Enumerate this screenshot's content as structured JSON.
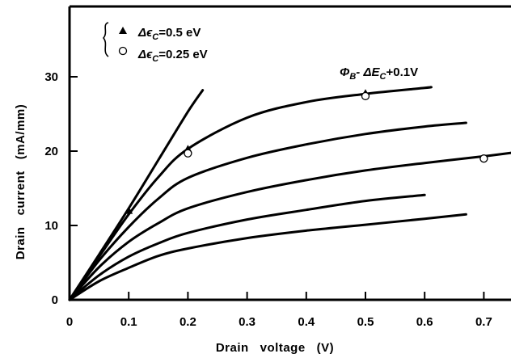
{
  "chart_data": {
    "type": "line",
    "xlabel": "Drain   voltage   (V)",
    "ylabel": "Drain   current   (mA/mm)",
    "xlim": [
      0,
      0.75
    ],
    "ylim": [
      0,
      35
    ],
    "x_ticks": [
      {
        "value": 0,
        "label": "0"
      },
      {
        "value": 0.1,
        "label": "0.1"
      },
      {
        "value": 0.2,
        "label": "0.2"
      },
      {
        "value": 0.3,
        "label": "0.3"
      },
      {
        "value": 0.4,
        "label": "0.4"
      },
      {
        "value": 0.5,
        "label": "0.5"
      },
      {
        "value": 0.6,
        "label": "0.6"
      },
      {
        "value": 0.7,
        "label": "0.7"
      }
    ],
    "y_ticks": [
      {
        "value": 0,
        "label": "0"
      },
      {
        "value": 10,
        "label": "10"
      },
      {
        "value": 20,
        "label": "20"
      },
      {
        "value": 30,
        "label": "30"
      }
    ],
    "grid": false,
    "legend_position": "top-left",
    "legend": [
      {
        "marker": "filled-triangle",
        "label": "Δϵ_C = 0.5 eV",
        "text": "Δϵ",
        "sub": "C",
        "tail": "=0.5 eV"
      },
      {
        "marker": "open-circle",
        "label": "Δϵ_C = 0.25 eV",
        "text": "Δϵ",
        "sub": "C",
        "tail": "=0.25 eV"
      }
    ],
    "annotation": {
      "label": "Φ_B - ΔE_C + 0.1V",
      "p1": "Φ",
      "s1": "B",
      "p2": "- ΔE",
      "s2": "C",
      "p3": "+0.1V",
      "x": 0.45,
      "y": 30.8
    },
    "series": [
      {
        "x": [
          0,
          0.05,
          0.1,
          0.15,
          0.2,
          0.225
        ],
        "y": [
          0,
          6.1,
          12.3,
          18.8,
          25.3,
          28.2
        ]
      },
      {
        "x": [
          0,
          0.05,
          0.1,
          0.15,
          0.2,
          0.3,
          0.4,
          0.5,
          0.6,
          0.61
        ],
        "y": [
          0,
          5.8,
          11.5,
          16.5,
          20.3,
          24.5,
          26.6,
          27.7,
          28.5,
          28.6
        ]
      },
      {
        "x": [
          0,
          0.05,
          0.1,
          0.15,
          0.2,
          0.3,
          0.4,
          0.5,
          0.6,
          0.67
        ],
        "y": [
          0,
          5.3,
          9.8,
          13.6,
          16.4,
          19.1,
          20.9,
          22.3,
          23.3,
          23.8
        ]
      },
      {
        "x": [
          0,
          0.05,
          0.1,
          0.15,
          0.2,
          0.3,
          0.4,
          0.5,
          0.6,
          0.7,
          0.75
        ],
        "y": [
          0,
          4.4,
          7.8,
          10.3,
          12.3,
          14.5,
          16.1,
          17.4,
          18.4,
          19.3,
          19.8
        ]
      },
      {
        "x": [
          0,
          0.05,
          0.1,
          0.15,
          0.2,
          0.3,
          0.4,
          0.5,
          0.6
        ],
        "y": [
          0,
          3.3,
          5.8,
          7.6,
          9.0,
          10.8,
          12.1,
          13.3,
          14.1
        ]
      },
      {
        "x": [
          0,
          0.05,
          0.1,
          0.15,
          0.2,
          0.3,
          0.4,
          0.5,
          0.6,
          0.67
        ],
        "y": [
          0,
          2.5,
          4.3,
          5.9,
          6.9,
          8.3,
          9.3,
          10.1,
          10.9,
          11.5
        ]
      }
    ],
    "triangle_points": [
      {
        "x": 0.1,
        "y": 12
      },
      {
        "x": 0.2,
        "y": 20.3
      },
      {
        "x": 0.5,
        "y": 27.8
      }
    ],
    "circle_points": [
      {
        "x": 0.2,
        "y": 19.7
      },
      {
        "x": 0.5,
        "y": 27.4
      },
      {
        "x": 0.7,
        "y": 19
      }
    ]
  }
}
